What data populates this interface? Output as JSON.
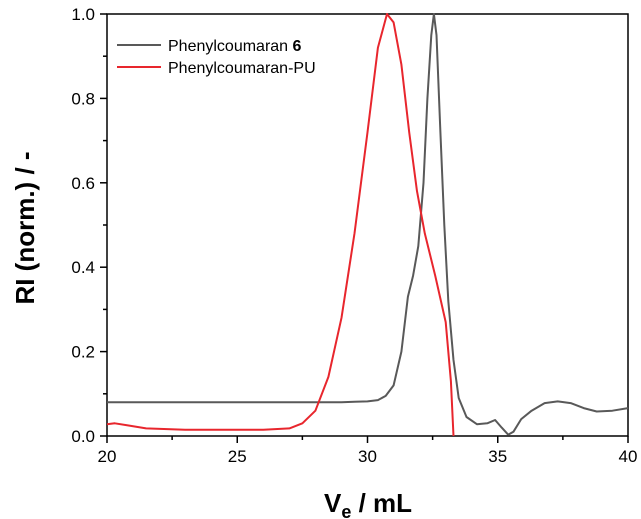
{
  "chart_data": {
    "type": "line",
    "xlabel": {
      "main": "V",
      "sub": "e",
      "rest": " / mL"
    },
    "ylabel": "RI (norm.) / -",
    "xlim": [
      20,
      40
    ],
    "ylim": [
      0,
      1.0
    ],
    "x_ticks": [
      "20",
      "25",
      "30",
      "35",
      "40"
    ],
    "y_ticks": [
      "0.0",
      "0.2",
      "0.4",
      "0.6",
      "0.8",
      "1.0"
    ],
    "grid": false,
    "legend_position": "top-left",
    "series": [
      {
        "name": "Phenylcoumaran",
        "name_bold_suffix": "6",
        "color": "#595959",
        "points": [
          [
            20,
            0.08
          ],
          [
            22,
            0.08
          ],
          [
            24,
            0.08
          ],
          [
            26,
            0.08
          ],
          [
            28,
            0.08
          ],
          [
            29,
            0.08
          ],
          [
            29.5,
            0.081
          ],
          [
            30,
            0.082
          ],
          [
            30.4,
            0.085
          ],
          [
            30.7,
            0.095
          ],
          [
            31,
            0.12
          ],
          [
            31.3,
            0.2
          ],
          [
            31.55,
            0.33
          ],
          [
            31.75,
            0.38
          ],
          [
            31.95,
            0.45
          ],
          [
            32.15,
            0.6
          ],
          [
            32.3,
            0.8
          ],
          [
            32.45,
            0.95
          ],
          [
            32.55,
            1.0
          ],
          [
            32.65,
            0.95
          ],
          [
            32.8,
            0.72
          ],
          [
            32.95,
            0.5
          ],
          [
            33.1,
            0.32
          ],
          [
            33.3,
            0.18
          ],
          [
            33.5,
            0.09
          ],
          [
            33.8,
            0.045
          ],
          [
            34.2,
            0.028
          ],
          [
            34.6,
            0.03
          ],
          [
            34.9,
            0.038
          ],
          [
            35.15,
            0.02
          ],
          [
            35.4,
            0.003
          ],
          [
            35.6,
            0.01
          ],
          [
            35.9,
            0.04
          ],
          [
            36.3,
            0.06
          ],
          [
            36.8,
            0.078
          ],
          [
            37.3,
            0.082
          ],
          [
            37.8,
            0.078
          ],
          [
            38.3,
            0.066
          ],
          [
            38.8,
            0.058
          ],
          [
            39.4,
            0.06
          ],
          [
            40,
            0.066
          ]
        ]
      },
      {
        "name": "Phenylcoumaran-PU",
        "color": "#e8262d",
        "points": [
          [
            20,
            0.028
          ],
          [
            20.3,
            0.03
          ],
          [
            20.8,
            0.025
          ],
          [
            21.5,
            0.018
          ],
          [
            23,
            0.015
          ],
          [
            25,
            0.015
          ],
          [
            26,
            0.015
          ],
          [
            27,
            0.018
          ],
          [
            27.5,
            0.03
          ],
          [
            28,
            0.06
          ],
          [
            28.5,
            0.14
          ],
          [
            29,
            0.28
          ],
          [
            29.5,
            0.48
          ],
          [
            30,
            0.72
          ],
          [
            30.4,
            0.92
          ],
          [
            30.75,
            1.0
          ],
          [
            31,
            0.98
          ],
          [
            31.3,
            0.88
          ],
          [
            31.6,
            0.72
          ],
          [
            31.9,
            0.58
          ],
          [
            32.2,
            0.48
          ],
          [
            32.6,
            0.38
          ],
          [
            33,
            0.27
          ],
          [
            33.2,
            0.13
          ],
          [
            33.3,
            0.0
          ]
        ]
      }
    ]
  }
}
